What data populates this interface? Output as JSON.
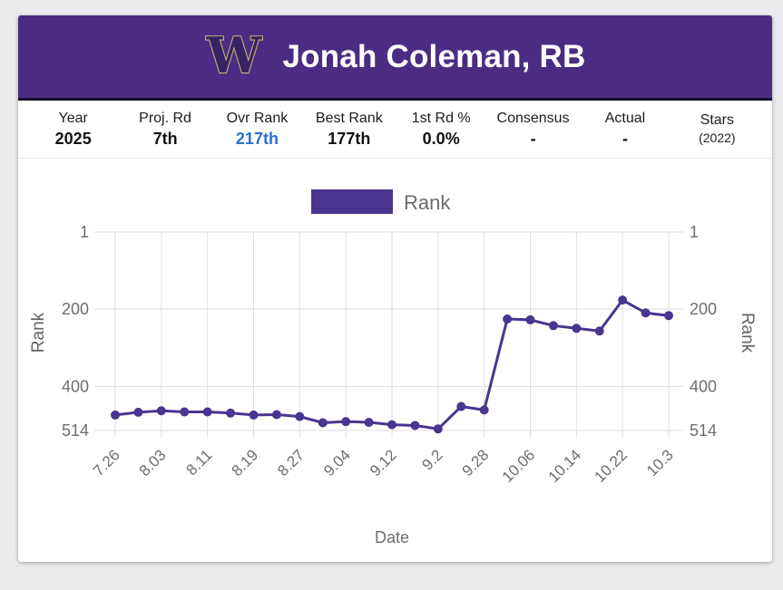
{
  "header": {
    "title": "Jonah Coleman, RB",
    "logo_letter": "W",
    "background_color": "#4a2d82",
    "logo_fill": "#352363",
    "logo_stroke": "#c6b07c"
  },
  "stats": {
    "columns": [
      {
        "label": "Year",
        "value": "2025",
        "style": "normal"
      },
      {
        "label": "Proj. Rd",
        "value": "7th",
        "style": "normal"
      },
      {
        "label": "Ovr Rank",
        "value": "217th",
        "style": "highlight"
      },
      {
        "label": "Best Rank",
        "value": "177th",
        "style": "normal"
      },
      {
        "label": "1st Rd %",
        "value": "0.0%",
        "style": "normal"
      },
      {
        "label": "Consensus",
        "value": "-",
        "style": "normal"
      },
      {
        "label": "Actual",
        "value": "-",
        "style": "normal"
      },
      {
        "label": "Stars",
        "value": "(2022)",
        "style": "small"
      }
    ]
  },
  "chart_data": {
    "type": "line",
    "legend": [
      {
        "name": "Rank",
        "color": "#4a3590"
      }
    ],
    "xlabel": "Date",
    "ylabel_left": "Rank",
    "ylabel_right": "Rank",
    "y_reversed": true,
    "ylim": [
      1,
      514
    ],
    "y_ticks": [
      1,
      200,
      400,
      514
    ],
    "grid": true,
    "x": [
      "7.26",
      "7.30",
      "8.03",
      "8.07",
      "8.11",
      "8.15",
      "8.19",
      "8.23",
      "8.27",
      "8.31",
      "9.04",
      "9.08",
      "9.12",
      "9.16",
      "9.2",
      "9.24",
      "9.28",
      "10.02",
      "10.06",
      "10.10",
      "10.14",
      "10.18",
      "10.22",
      "10.26",
      "10.3"
    ],
    "x_tick_labels": [
      "7.26",
      "8.03",
      "8.11",
      "8.19",
      "8.27",
      "9.04",
      "9.12",
      "9.2",
      "9.28",
      "10.06",
      "10.14",
      "10.22",
      "10.3"
    ],
    "series": [
      {
        "name": "Rank",
        "color": "#4a3590",
        "values": [
          474,
          467,
          463,
          466,
          466,
          469,
          474,
          473,
          478,
          494,
          491,
          493,
          499,
          501,
          510,
          452,
          461,
          226,
          228,
          243,
          250,
          257,
          177,
          210,
          217
        ]
      }
    ],
    "colors": {
      "grid": "#dedede",
      "tick_text": "#6e6e6e",
      "axis_title_text": "#636363",
      "legend_text": "#6b6b6b"
    }
  }
}
